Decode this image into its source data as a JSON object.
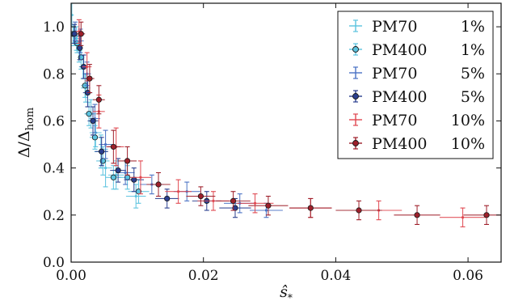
{
  "chart_data": {
    "type": "scatter",
    "xlabel": "ŝ",
    "xlabel_sub": "*",
    "ylabel": "Δ/Δ",
    "ylabel_sub": "hom",
    "xlim": [
      0,
      0.065
    ],
    "ylim": [
      0,
      1.1
    ],
    "x_ticks": [
      0,
      0.02,
      0.04,
      0.06
    ],
    "x_tick_labels": [
      "0.00",
      "0.02",
      "0.04",
      "0.06"
    ],
    "y_ticks": [
      0,
      0.2,
      0.4,
      0.6,
      0.8,
      1.0
    ],
    "y_tick_labels": [
      "0.0",
      "0.2",
      "0.4",
      "0.6",
      "0.8",
      "1.0"
    ],
    "grid": false,
    "legend_position": "top-right",
    "series": [
      {
        "name": "PM70",
        "pct": "1%",
        "color": "#5bc3df",
        "filled": false,
        "points": [
          {
            "x": 0.0001,
            "y": 1.05,
            "ex": 0.0003,
            "ey": 0.05
          },
          {
            "x": 0.0004,
            "y": 0.96,
            "ex": 0.0003,
            "ey": 0.04
          },
          {
            "x": 0.0008,
            "y": 0.95,
            "ex": 0.0004,
            "ey": 0.05
          },
          {
            "x": 0.0012,
            "y": 0.9,
            "ex": 0.0005,
            "ey": 0.05
          },
          {
            "x": 0.0018,
            "y": 0.83,
            "ex": 0.0006,
            "ey": 0.05
          },
          {
            "x": 0.0022,
            "y": 0.74,
            "ex": 0.0007,
            "ey": 0.06
          },
          {
            "x": 0.003,
            "y": 0.63,
            "ex": 0.0008,
            "ey": 0.06
          },
          {
            "x": 0.0037,
            "y": 0.55,
            "ex": 0.0009,
            "ey": 0.06
          },
          {
            "x": 0.0045,
            "y": 0.47,
            "ex": 0.001,
            "ey": 0.07
          },
          {
            "x": 0.0052,
            "y": 0.4,
            "ex": 0.001,
            "ey": 0.08
          },
          {
            "x": 0.0068,
            "y": 0.37,
            "ex": 0.0012,
            "ey": 0.06
          },
          {
            "x": 0.0098,
            "y": 0.28,
            "ex": 0.0015,
            "ey": 0.05
          }
        ]
      },
      {
        "name": "PM400",
        "pct": "1%",
        "color": "#5bc3df",
        "filled": true,
        "points": [
          {
            "x": 0.0003,
            "y": 0.97,
            "ex": 0.0003,
            "ey": 0.04
          },
          {
            "x": 0.0009,
            "y": 0.93,
            "ex": 0.0004,
            "ey": 0.04
          },
          {
            "x": 0.0015,
            "y": 0.87,
            "ex": 0.0005,
            "ey": 0.05
          },
          {
            "x": 0.0021,
            "y": 0.75,
            "ex": 0.0006,
            "ey": 0.05
          },
          {
            "x": 0.0027,
            "y": 0.63,
            "ex": 0.0007,
            "ey": 0.05
          },
          {
            "x": 0.0036,
            "y": 0.53,
            "ex": 0.0008,
            "ey": 0.05
          },
          {
            "x": 0.0048,
            "y": 0.43,
            "ex": 0.001,
            "ey": 0.06
          },
          {
            "x": 0.0064,
            "y": 0.36,
            "ex": 0.0012,
            "ey": 0.05
          },
          {
            "x": 0.0085,
            "y": 0.36,
            "ex": 0.0014,
            "ey": 0.05
          },
          {
            "x": 0.0102,
            "y": 0.3,
            "ex": 0.0016,
            "ey": 0.05
          }
        ]
      },
      {
        "name": "PM70",
        "pct": "5%",
        "color": "#4a72c4",
        "filled": false,
        "points": [
          {
            "x": 0.0006,
            "y": 0.98,
            "ex": 0.0004,
            "ey": 0.04
          },
          {
            "x": 0.0014,
            "y": 0.94,
            "ex": 0.0005,
            "ey": 0.05
          },
          {
            "x": 0.0024,
            "y": 0.8,
            "ex": 0.0006,
            "ey": 0.05
          },
          {
            "x": 0.0036,
            "y": 0.61,
            "ex": 0.0008,
            "ey": 0.06
          },
          {
            "x": 0.0052,
            "y": 0.5,
            "ex": 0.001,
            "ey": 0.06
          },
          {
            "x": 0.0082,
            "y": 0.38,
            "ex": 0.0014,
            "ey": 0.05
          },
          {
            "x": 0.0122,
            "y": 0.33,
            "ex": 0.0018,
            "ey": 0.04
          },
          {
            "x": 0.0175,
            "y": 0.3,
            "ex": 0.002,
            "ey": 0.04
          },
          {
            "x": 0.0255,
            "y": 0.25,
            "ex": 0.0024,
            "ey": 0.04
          },
          {
            "x": 0.0295,
            "y": 0.22,
            "ex": 0.0025,
            "ey": 0.03
          }
        ]
      },
      {
        "name": "PM400",
        "pct": "5%",
        "color": "#2a3f8f",
        "filled": true,
        "points": [
          {
            "x": 0.0005,
            "y": 0.97,
            "ex": 0.0004,
            "ey": 0.04
          },
          {
            "x": 0.0013,
            "y": 0.91,
            "ex": 0.0005,
            "ey": 0.05
          },
          {
            "x": 0.0019,
            "y": 0.83,
            "ex": 0.0006,
            "ey": 0.05
          },
          {
            "x": 0.0025,
            "y": 0.72,
            "ex": 0.0007,
            "ey": 0.06
          },
          {
            "x": 0.0033,
            "y": 0.6,
            "ex": 0.0008,
            "ey": 0.06
          },
          {
            "x": 0.0046,
            "y": 0.47,
            "ex": 0.001,
            "ey": 0.06
          },
          {
            "x": 0.0071,
            "y": 0.39,
            "ex": 0.0012,
            "ey": 0.05
          },
          {
            "x": 0.0095,
            "y": 0.35,
            "ex": 0.0015,
            "ey": 0.05
          },
          {
            "x": 0.0145,
            "y": 0.27,
            "ex": 0.0018,
            "ey": 0.04
          },
          {
            "x": 0.0205,
            "y": 0.26,
            "ex": 0.0022,
            "ey": 0.04
          },
          {
            "x": 0.0248,
            "y": 0.23,
            "ex": 0.0024,
            "ey": 0.04
          }
        ]
      },
      {
        "name": "PM70",
        "pct": "10%",
        "color": "#e0474f",
        "filled": false,
        "points": [
          {
            "x": 0.0012,
            "y": 0.98,
            "ex": 0.0005,
            "ey": 0.05
          },
          {
            "x": 0.0024,
            "y": 0.83,
            "ex": 0.0007,
            "ey": 0.06
          },
          {
            "x": 0.0042,
            "y": 0.64,
            "ex": 0.0009,
            "ey": 0.07
          },
          {
            "x": 0.0068,
            "y": 0.49,
            "ex": 0.0012,
            "ey": 0.08
          },
          {
            "x": 0.0105,
            "y": 0.36,
            "ex": 0.0016,
            "ey": 0.07
          },
          {
            "x": 0.0162,
            "y": 0.3,
            "ex": 0.002,
            "ey": 0.05
          },
          {
            "x": 0.0215,
            "y": 0.26,
            "ex": 0.0024,
            "ey": 0.04
          },
          {
            "x": 0.0278,
            "y": 0.25,
            "ex": 0.0028,
            "ey": 0.04
          },
          {
            "x": 0.0362,
            "y": 0.23,
            "ex": 0.0032,
            "ey": 0.04
          },
          {
            "x": 0.0465,
            "y": 0.22,
            "ex": 0.0035,
            "ey": 0.04
          },
          {
            "x": 0.0592,
            "y": 0.19,
            "ex": 0.0035,
            "ey": 0.04
          }
        ]
      },
      {
        "name": "PM400",
        "pct": "10%",
        "color": "#9e1f2a",
        "filled": true,
        "points": [
          {
            "x": 0.0015,
            "y": 0.97,
            "ex": 0.0006,
            "ey": 0.05
          },
          {
            "x": 0.0028,
            "y": 0.78,
            "ex": 0.0007,
            "ey": 0.06
          },
          {
            "x": 0.0042,
            "y": 0.69,
            "ex": 0.0009,
            "ey": 0.06
          },
          {
            "x": 0.0064,
            "y": 0.49,
            "ex": 0.0011,
            "ey": 0.07
          },
          {
            "x": 0.0085,
            "y": 0.43,
            "ex": 0.0014,
            "ey": 0.06
          },
          {
            "x": 0.0132,
            "y": 0.33,
            "ex": 0.0018,
            "ey": 0.05
          },
          {
            "x": 0.0196,
            "y": 0.28,
            "ex": 0.0022,
            "ey": 0.04
          },
          {
            "x": 0.0245,
            "y": 0.26,
            "ex": 0.0026,
            "ey": 0.04
          },
          {
            "x": 0.0298,
            "y": 0.24,
            "ex": 0.003,
            "ey": 0.04
          },
          {
            "x": 0.0362,
            "y": 0.23,
            "ex": 0.0032,
            "ey": 0.04
          },
          {
            "x": 0.0435,
            "y": 0.22,
            "ex": 0.0035,
            "ey": 0.04
          },
          {
            "x": 0.0523,
            "y": 0.2,
            "ex": 0.0035,
            "ey": 0.04
          },
          {
            "x": 0.0628,
            "y": 0.2,
            "ex": 0.0035,
            "ey": 0.04
          }
        ]
      }
    ]
  }
}
